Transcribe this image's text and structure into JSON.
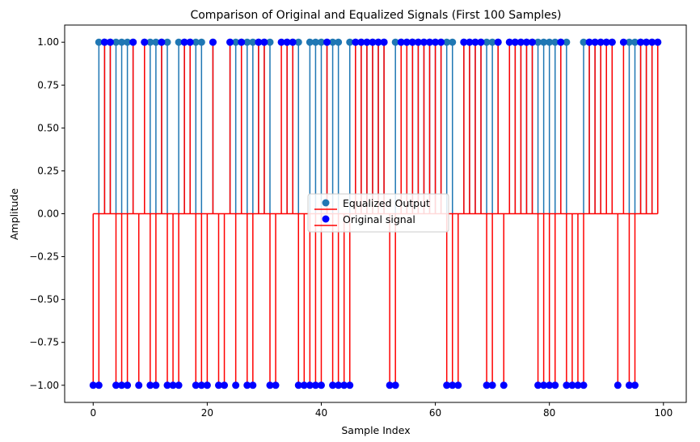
{
  "chart_data": {
    "type": "stem",
    "title": "Comparison of Original and Equalized Signals (First 100 Samples)",
    "xlabel": "Sample Index",
    "ylabel": "Amplitude",
    "xlim": [
      -5,
      104
    ],
    "ylim": [
      -1.1,
      1.1
    ],
    "x_ticks": [
      0,
      20,
      40,
      60,
      80,
      100
    ],
    "x_tick_labels": [
      "0",
      "20",
      "40",
      "60",
      "80",
      "100"
    ],
    "y_ticks": [
      1.0,
      0.75,
      0.5,
      0.25,
      0.0,
      -0.25,
      -0.5,
      -0.75,
      -1.0
    ],
    "y_tick_labels": [
      "1.00",
      "0.75",
      "0.50",
      "0.25",
      "0.00",
      "−0.25",
      "−0.50",
      "−0.75",
      "−1.00"
    ],
    "grid": false,
    "legend_position": "center",
    "series": [
      {
        "name": "Equalized Output",
        "marker_color": "#1f77b4",
        "stem_color": "#1f77b4",
        "baseline_color": "#ff0000",
        "x": [
          1,
          2,
          3,
          4,
          5,
          6,
          7,
          9,
          10,
          11,
          12,
          13,
          15,
          16,
          17,
          18,
          19,
          21,
          24,
          25,
          26,
          27,
          28,
          29,
          30,
          31,
          34,
          35,
          36,
          38,
          39,
          40,
          41,
          42,
          43,
          45,
          46,
          47,
          48,
          49,
          50,
          51,
          53,
          54,
          55,
          56,
          57,
          58,
          59,
          60,
          61,
          62,
          63,
          65,
          66,
          67,
          68,
          69,
          70,
          71,
          73,
          74,
          75,
          76,
          77,
          78,
          79,
          80,
          81,
          82,
          83,
          86,
          87,
          88,
          89,
          90,
          91,
          94,
          95,
          96,
          97,
          98,
          99
        ],
        "y": [
          1,
          1,
          1,
          1,
          1,
          1,
          1,
          1,
          1,
          1,
          1,
          1,
          1,
          1,
          1,
          1,
          1,
          1,
          1,
          1,
          1,
          1,
          1,
          1,
          1,
          1,
          1,
          1,
          1,
          1,
          1,
          1,
          1,
          1,
          1,
          1,
          1,
          1,
          1,
          1,
          1,
          1,
          1,
          1,
          1,
          1,
          1,
          1,
          1,
          1,
          1,
          1,
          1,
          1,
          1,
          1,
          1,
          1,
          1,
          1,
          1,
          1,
          1,
          1,
          1,
          1,
          1,
          1,
          1,
          1,
          1,
          1,
          1,
          1,
          1,
          1,
          1,
          1,
          1,
          1,
          1,
          1,
          1
        ]
      },
      {
        "name": "Original signal",
        "marker_color": "#0000ff",
        "stem_color": "#ff0000",
        "baseline_color": "#ff0000",
        "x": [
          0,
          1,
          2,
          3,
          4,
          5,
          6,
          7,
          8,
          9,
          10,
          11,
          12,
          13,
          14,
          15,
          16,
          17,
          18,
          19,
          20,
          21,
          22,
          23,
          24,
          25,
          26,
          27,
          28,
          29,
          30,
          31,
          32,
          33,
          34,
          35,
          36,
          37,
          38,
          39,
          40,
          41,
          42,
          43,
          44,
          45,
          46,
          47,
          48,
          49,
          50,
          51,
          52,
          53,
          54,
          55,
          56,
          57,
          58,
          59,
          60,
          61,
          62,
          63,
          64,
          65,
          66,
          67,
          68,
          69,
          70,
          71,
          72,
          73,
          74,
          75,
          76,
          77,
          78,
          79,
          80,
          81,
          82,
          83,
          84,
          85,
          86,
          87,
          88,
          89,
          90,
          91,
          92,
          93,
          94,
          95,
          96,
          97,
          98,
          99
        ],
        "y": [
          -1,
          -1,
          1,
          1,
          -1,
          -1,
          -1,
          1,
          -1,
          1,
          -1,
          -1,
          1,
          -1,
          -1,
          -1,
          1,
          1,
          -1,
          -1,
          -1,
          1,
          -1,
          -1,
          1,
          -1,
          1,
          -1,
          -1,
          1,
          1,
          -1,
          -1,
          1,
          1,
          1,
          -1,
          -1,
          -1,
          -1,
          -1,
          1,
          -1,
          -1,
          -1,
          -1,
          1,
          1,
          1,
          1,
          1,
          1,
          -1,
          -1,
          1,
          1,
          1,
          1,
          1,
          1,
          1,
          1,
          -1,
          -1,
          -1,
          1,
          1,
          1,
          1,
          -1,
          -1,
          1,
          -1,
          1,
          1,
          1,
          1,
          1,
          -1,
          -1,
          -1,
          -1,
          1,
          -1,
          -1,
          -1,
          -1,
          1,
          1,
          1,
          1,
          1,
          -1,
          1,
          -1,
          -1,
          1,
          1,
          1,
          1
        ]
      }
    ]
  }
}
